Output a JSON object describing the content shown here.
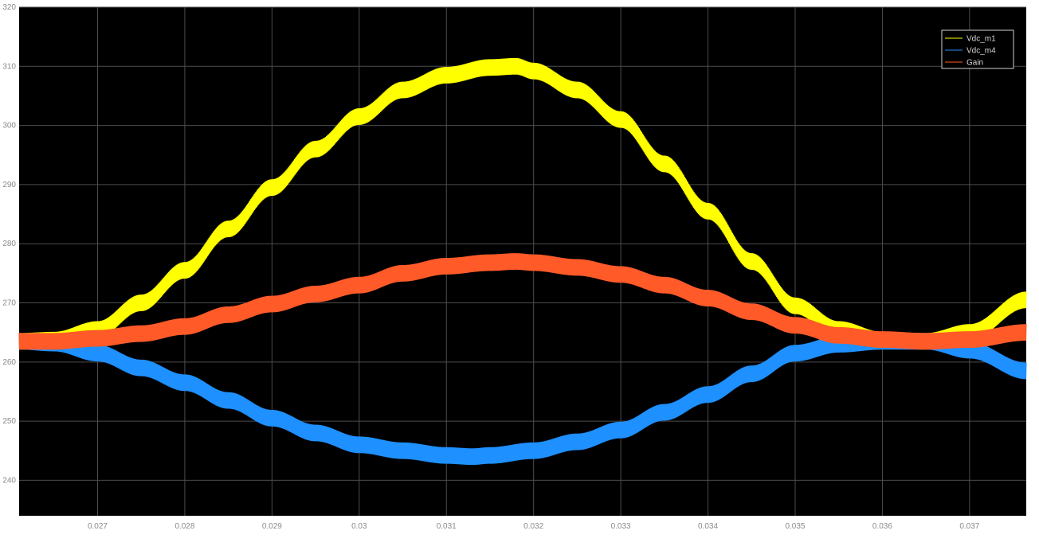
{
  "chart_data": {
    "type": "line",
    "title": "",
    "xlabel": "",
    "ylabel": "",
    "xlim": [
      0.0261,
      0.03765
    ],
    "ylim": [
      234,
      320
    ],
    "grid": true,
    "legend_position": "top-right",
    "x_ticks": [
      "0.027",
      "0.028",
      "0.029",
      "0.03",
      "0.031",
      "0.032",
      "0.033",
      "0.034",
      "0.035",
      "0.036",
      "0.037"
    ],
    "y_ticks": [
      "320",
      "310",
      "300",
      "290",
      "280",
      "270",
      "260",
      "250",
      "240"
    ],
    "ripple_amplitude": 1.4,
    "colors": {
      "background": "#000000",
      "grid": "#4d4d4d",
      "tick_text": "#8a8a8a"
    },
    "series": [
      {
        "name": "Vdc_m1",
        "color": "#ffff00",
        "x": [
          0.0261,
          0.0265,
          0.027,
          0.0275,
          0.028,
          0.0285,
          0.029,
          0.0295,
          0.03,
          0.0305,
          0.031,
          0.0315,
          0.0318,
          0.032,
          0.0325,
          0.033,
          0.0335,
          0.034,
          0.0345,
          0.035,
          0.0355,
          0.036,
          0.0365,
          0.037,
          0.03765
        ],
        "y": [
          263.5,
          263.7,
          265.5,
          270.0,
          275.5,
          282.5,
          289.5,
          296.0,
          301.5,
          306.0,
          308.5,
          309.8,
          310.0,
          309.2,
          306.0,
          301.0,
          293.5,
          285.5,
          277.0,
          269.5,
          265.5,
          263.7,
          263.5,
          265.0,
          270.5
        ]
      },
      {
        "name": "Vdc_m4",
        "color": "#1e90ff",
        "x": [
          0.0261,
          0.0265,
          0.027,
          0.0275,
          0.028,
          0.0285,
          0.029,
          0.0295,
          0.03,
          0.0305,
          0.031,
          0.0313,
          0.0315,
          0.032,
          0.0325,
          0.033,
          0.0335,
          0.034,
          0.0345,
          0.035,
          0.0355,
          0.036,
          0.0365,
          0.037,
          0.03765
        ],
        "y": [
          263.5,
          263.2,
          261.5,
          259.0,
          256.5,
          253.5,
          250.5,
          248.0,
          246.0,
          245.0,
          244.2,
          244.0,
          244.2,
          245.0,
          246.5,
          248.5,
          251.5,
          254.5,
          258.0,
          261.5,
          263.0,
          263.5,
          263.5,
          262.0,
          258.5
        ]
      },
      {
        "name": "Gain",
        "color": "#ff5a28",
        "x": [
          0.0261,
          0.0265,
          0.027,
          0.0275,
          0.028,
          0.0285,
          0.029,
          0.0295,
          0.03,
          0.0305,
          0.031,
          0.0315,
          0.0318,
          0.032,
          0.0325,
          0.033,
          0.0335,
          0.034,
          0.0345,
          0.035,
          0.0355,
          0.036,
          0.0365,
          0.037,
          0.03765
        ],
        "y": [
          263.5,
          263.5,
          264.0,
          264.8,
          266.0,
          268.0,
          269.8,
          271.5,
          273.0,
          275.0,
          276.2,
          276.8,
          277.0,
          276.8,
          276.0,
          274.8,
          273.0,
          270.8,
          268.5,
          266.2,
          264.5,
          263.8,
          263.5,
          263.8,
          265.0
        ]
      }
    ]
  }
}
